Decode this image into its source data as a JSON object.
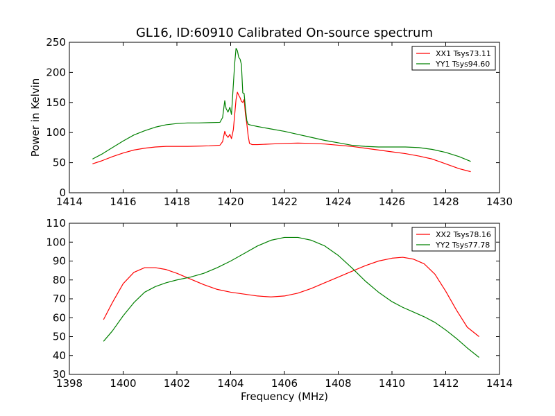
{
  "figure": {
    "title": "GL16, ID:60910 Calibrated On-source spectrum"
  },
  "colors": {
    "xx": "#ff0000",
    "yy": "#008000",
    "axes": "#000000",
    "background": "#ffffff"
  },
  "chart_data": [
    {
      "type": "line",
      "title": "GL16, ID:60910 Calibrated On-source spectrum",
      "xlabel": "",
      "ylabel": "Power in Kelvin",
      "xlim": [
        1414,
        1430
      ],
      "ylim": [
        0,
        250
      ],
      "xticks": [
        "1414",
        "1416",
        "1418",
        "1420",
        "1422",
        "1424",
        "1426",
        "1428",
        "1430"
      ],
      "yticks": [
        "0",
        "50",
        "100",
        "150",
        "200",
        "250"
      ],
      "grid": false,
      "legend": "top-right",
      "series": [
        {
          "name": "XX1 Tsys73.11",
          "color": "#ff0000",
          "x": [
            1414.86,
            1415.2,
            1415.6,
            1416.0,
            1416.4,
            1416.8,
            1417.2,
            1417.6,
            1418.0,
            1418.4,
            1418.8,
            1419.2,
            1419.6,
            1419.7,
            1419.78,
            1419.83,
            1419.9,
            1419.97,
            1420.03,
            1420.1,
            1420.15,
            1420.2,
            1420.25,
            1420.3,
            1420.35,
            1420.4,
            1420.45,
            1420.5,
            1420.55,
            1420.6,
            1420.65,
            1420.7,
            1420.8,
            1421.0,
            1421.5,
            1422.0,
            1422.5,
            1423.0,
            1423.5,
            1424.0,
            1424.5,
            1425.0,
            1425.5,
            1426.0,
            1426.5,
            1427.0,
            1427.5,
            1428.0,
            1428.5,
            1428.93
          ],
          "y": [
            48,
            53,
            60,
            66,
            71,
            74,
            76,
            77,
            77,
            77,
            77.5,
            78,
            79,
            85,
            102,
            96,
            92,
            97,
            90,
            105,
            130,
            155,
            167,
            162,
            158,
            152,
            150,
            155,
            130,
            115,
            95,
            82,
            80,
            80,
            81,
            82,
            82.5,
            82,
            81,
            79,
            77,
            74,
            71,
            68,
            65,
            61,
            56,
            48,
            40,
            35
          ]
        },
        {
          "name": "YY1 Tsys94.60",
          "color": "#008000",
          "x": [
            1414.86,
            1415.2,
            1415.6,
            1416.0,
            1416.4,
            1416.8,
            1417.2,
            1417.6,
            1418.0,
            1418.4,
            1418.8,
            1419.2,
            1419.6,
            1419.7,
            1419.78,
            1419.83,
            1419.9,
            1419.97,
            1420.03,
            1420.1,
            1420.15,
            1420.2,
            1420.25,
            1420.3,
            1420.35,
            1420.4,
            1420.45,
            1420.5,
            1420.55,
            1420.6,
            1420.65,
            1420.7,
            1420.8,
            1421.0,
            1421.5,
            1422.0,
            1422.5,
            1423.0,
            1423.5,
            1424.0,
            1424.5,
            1425.0,
            1425.5,
            1426.0,
            1426.5,
            1427.0,
            1427.5,
            1428.0,
            1428.5,
            1428.93
          ],
          "y": [
            56,
            64,
            75,
            86,
            96,
            103,
            109,
            113,
            115,
            116,
            116,
            116.5,
            117,
            125,
            153,
            140,
            134,
            142,
            130,
            180,
            215,
            240,
            236,
            225,
            222,
            213,
            166,
            165,
            140,
            120,
            114,
            113,
            112,
            110,
            106,
            102,
            97,
            92,
            87,
            83,
            79,
            77,
            76,
            76,
            76,
            75,
            72,
            67,
            60,
            52
          ]
        }
      ]
    },
    {
      "type": "line",
      "title": "",
      "xlabel": "Frequency (MHz)",
      "ylabel": "",
      "xlim": [
        1398,
        1414
      ],
      "ylim": [
        30,
        110
      ],
      "xticks": [
        "1398",
        "1400",
        "1402",
        "1404",
        "1406",
        "1408",
        "1410",
        "1412",
        "1414"
      ],
      "yticks": [
        "30",
        "40",
        "50",
        "60",
        "70",
        "80",
        "90",
        "100",
        "110"
      ],
      "grid": false,
      "legend": "top-right",
      "series": [
        {
          "name": "XX2 Tsys78.16",
          "color": "#ff0000",
          "x": [
            1399.27,
            1399.6,
            1400.0,
            1400.4,
            1400.8,
            1401.2,
            1401.6,
            1402.0,
            1402.5,
            1403.0,
            1403.5,
            1404.0,
            1404.5,
            1405.0,
            1405.5,
            1406.0,
            1406.5,
            1407.0,
            1407.5,
            1408.0,
            1408.5,
            1409.0,
            1409.5,
            1410.0,
            1410.4,
            1410.8,
            1411.2,
            1411.6,
            1412.0,
            1412.4,
            1412.8,
            1413.24
          ],
          "y": [
            59,
            68,
            78,
            84,
            86.5,
            86.5,
            85.5,
            83.5,
            80.5,
            77.5,
            75,
            73.5,
            72.5,
            71.5,
            71,
            71.5,
            73,
            75.5,
            78.5,
            81.5,
            84.5,
            87.5,
            90,
            91.5,
            92,
            91,
            88.5,
            83,
            74,
            64,
            55,
            50
          ]
        },
        {
          "name": "YY2 Tsys77.78",
          "color": "#008000",
          "x": [
            1399.27,
            1399.6,
            1400.0,
            1400.4,
            1400.8,
            1401.2,
            1401.6,
            1402.0,
            1402.5,
            1403.0,
            1403.5,
            1404.0,
            1404.5,
            1405.0,
            1405.5,
            1406.0,
            1406.5,
            1407.0,
            1407.5,
            1408.0,
            1408.5,
            1409.0,
            1409.5,
            1410.0,
            1410.4,
            1410.8,
            1411.2,
            1411.6,
            1412.0,
            1412.4,
            1412.8,
            1413.24
          ],
          "y": [
            47.5,
            53,
            61,
            68,
            73.5,
            76.5,
            78.5,
            80,
            81.5,
            83.5,
            86.5,
            90,
            94,
            98,
            101,
            102.5,
            102.5,
            101,
            98,
            93,
            86.5,
            79.5,
            73.5,
            68.5,
            65.5,
            63,
            60.5,
            57.5,
            53.5,
            49,
            44,
            39
          ]
        }
      ]
    }
  ]
}
